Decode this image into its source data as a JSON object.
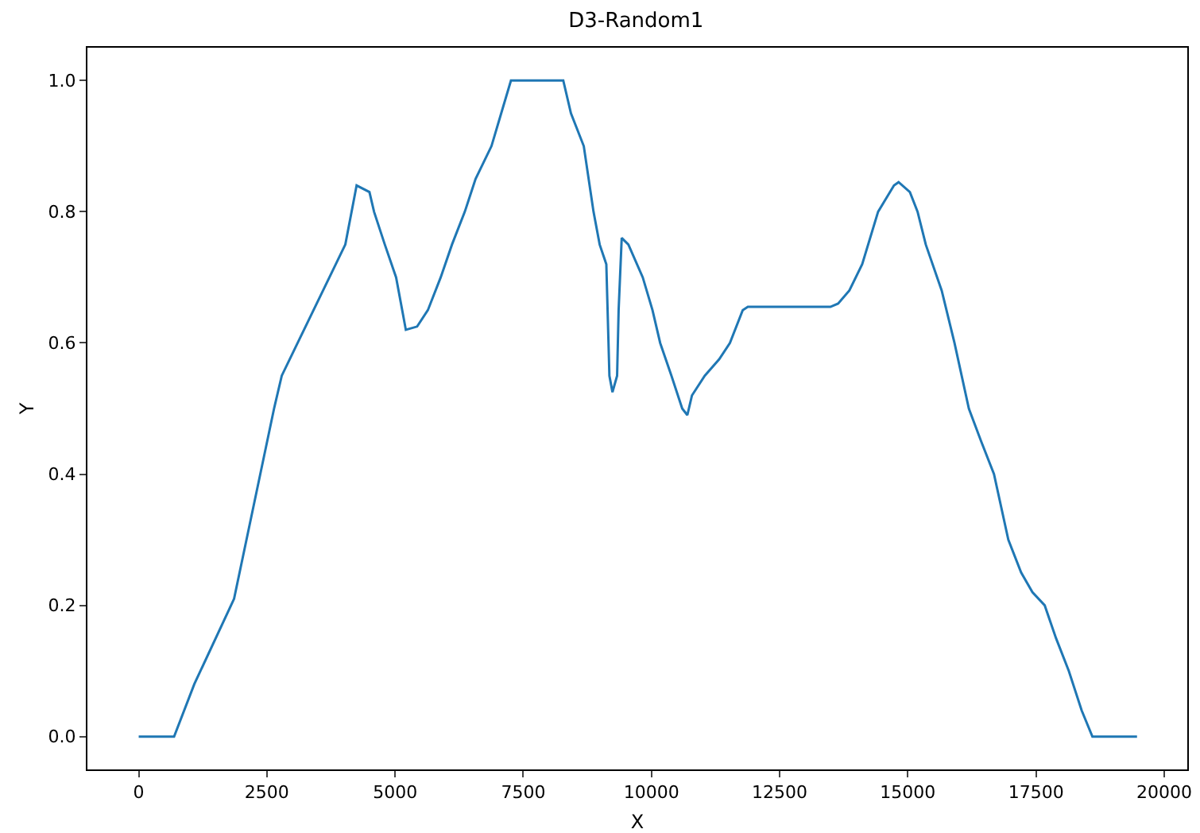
{
  "chart_data": {
    "type": "line",
    "title": "D3-Random1",
    "xlabel": "X",
    "ylabel": "Y",
    "grid": false,
    "marker": "none",
    "line_style": "solid",
    "xlim": [
      -1000,
      20450
    ],
    "ylim": [
      -0.05,
      1.05
    ],
    "xticks": [
      0,
      2500,
      5000,
      7500,
      10000,
      12500,
      15000,
      17500,
      20000
    ],
    "yticks": [
      {
        "value": 0,
        "label": "0.0"
      },
      {
        "value": 0.2,
        "label": "0.2"
      },
      {
        "value": 0.4,
        "label": "0.4"
      },
      {
        "value": 0.6,
        "label": "0.6"
      },
      {
        "value": 0.8,
        "label": "0.8"
      },
      {
        "value": 1,
        "label": "1.0"
      }
    ],
    "series": [
      {
        "color": "#1f77b4",
        "x": [
          0,
          690,
          1085,
          1860,
          2640,
          2790,
          3100,
          3720,
          4030,
          4250,
          4500,
          4590,
          4800,
          5020,
          5210,
          5430,
          5640,
          5890,
          6110,
          6360,
          6570,
          6880,
          7070,
          7260,
          8280,
          8430,
          8680,
          8870,
          8990,
          9120,
          9180,
          9240,
          9330,
          9360,
          9420,
          9550,
          9830,
          10020,
          10170,
          10390,
          10600,
          10700,
          10790,
          11040,
          11320,
          11530,
          11780,
          11880,
          13490,
          13640,
          13860,
          14110,
          14420,
          14730,
          14820,
          15040,
          15190,
          15350,
          15660,
          15910,
          16190,
          16430,
          16680,
          16960,
          17210,
          17430,
          17670,
          17890,
          18140,
          18390,
          18600,
          19470
        ],
        "values": [
          0,
          0,
          0.08,
          0.21,
          0.5,
          0.55,
          0.6,
          0.7,
          0.75,
          0.84,
          0.83,
          0.8,
          0.75,
          0.7,
          0.62,
          0.625,
          0.65,
          0.7,
          0.75,
          0.8,
          0.85,
          0.9,
          0.95,
          1,
          1,
          0.95,
          0.9,
          0.8,
          0.75,
          0.72,
          0.55,
          0.525,
          0.55,
          0.65,
          0.76,
          0.75,
          0.7,
          0.65,
          0.6,
          0.55,
          0.5,
          0.49,
          0.52,
          0.55,
          0.575,
          0.6,
          0.65,
          0.655,
          0.655,
          0.66,
          0.68,
          0.72,
          0.8,
          0.84,
          0.845,
          0.83,
          0.8,
          0.75,
          0.68,
          0.6,
          0.5,
          0.45,
          0.4,
          0.3,
          0.25,
          0.22,
          0.2,
          0.15,
          0.1,
          0.04,
          0,
          0
        ]
      }
    ]
  }
}
